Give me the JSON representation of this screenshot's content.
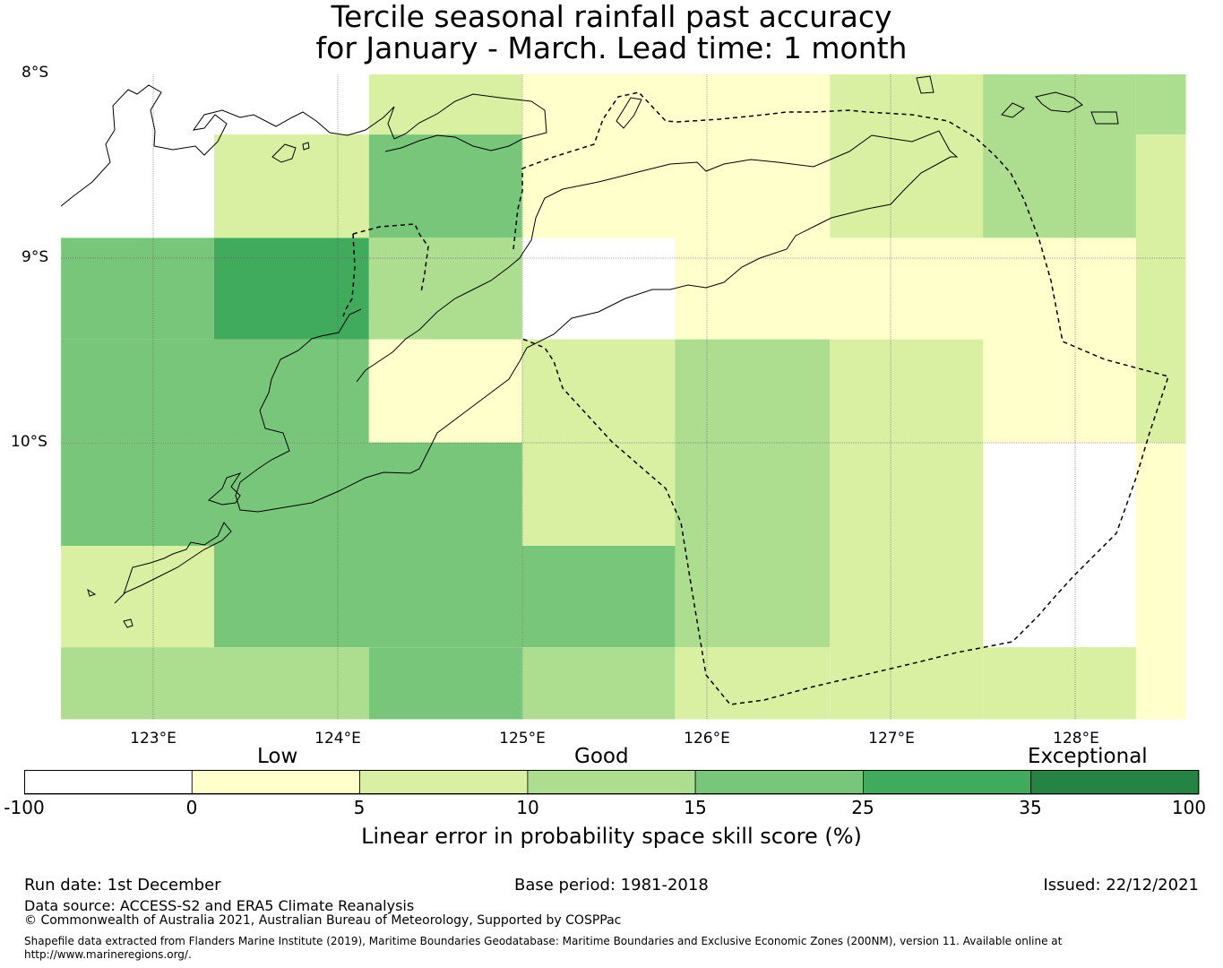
{
  "title": {
    "line1": "Tercile seasonal rainfall past accuracy",
    "line2": "for January - March. Lead time: 1 month"
  },
  "map": {
    "lat_labels": [
      "8°S",
      "9°S",
      "10°S"
    ],
    "lon_labels": [
      "123°E",
      "124°E",
      "125°E",
      "126°E",
      "127°E",
      "128°E"
    ],
    "lon_range": [
      122.5,
      128.6
    ],
    "lat_range": [
      -8.0,
      -11.5
    ],
    "grid_cells": [
      {
        "lon": [
          123.33,
          124.17
        ],
        "lat": [
          -8.33,
          -8.89
        ],
        "category": "5-10"
      },
      {
        "lon": [
          124.17,
          125.0
        ],
        "lat": [
          -8.0,
          -8.33
        ],
        "category": "5-10"
      },
      {
        "lon": [
          124.17,
          125.0
        ],
        "lat": [
          -8.33,
          -8.89
        ],
        "category": "15-25"
      },
      {
        "lon": [
          125.0,
          126.67
        ],
        "lat": [
          -8.0,
          -8.89
        ],
        "category": "0-5"
      },
      {
        "lon": [
          126.67,
          127.5
        ],
        "lat": [
          -8.0,
          -8.89
        ],
        "category": "5-10"
      },
      {
        "lon": [
          127.5,
          128.33
        ],
        "lat": [
          -8.0,
          -8.89
        ],
        "category": "10-15"
      },
      {
        "lon": [
          128.33,
          128.6
        ],
        "lat": [
          -8.0,
          -8.33
        ],
        "category": "10-15"
      },
      {
        "lon": [
          128.33,
          128.6
        ],
        "lat": [
          -8.33,
          -10.0
        ],
        "category": "5-10"
      },
      {
        "lon": [
          122.5,
          123.33
        ],
        "lat": [
          -8.89,
          -9.44
        ],
        "category": "15-25"
      },
      {
        "lon": [
          123.33,
          124.17
        ],
        "lat": [
          -8.89,
          -9.44
        ],
        "category": "25-35"
      },
      {
        "lon": [
          124.17,
          125.0
        ],
        "lat": [
          -8.89,
          -9.44
        ],
        "category": "10-15"
      },
      {
        "lon": [
          125.0,
          125.83
        ],
        "lat": [
          -8.89,
          -9.44
        ],
        "category": "-100-0"
      },
      {
        "lon": [
          125.83,
          128.33
        ],
        "lat": [
          -8.89,
          -9.44
        ],
        "category": "0-5"
      },
      {
        "lon": [
          122.5,
          124.17
        ],
        "lat": [
          -9.44,
          -10.0
        ],
        "category": "15-25"
      },
      {
        "lon": [
          124.17,
          125.0
        ],
        "lat": [
          -9.44,
          -10.0
        ],
        "category": "0-5"
      },
      {
        "lon": [
          125.0,
          125.83
        ],
        "lat": [
          -9.44,
          -10.56
        ],
        "category": "5-10"
      },
      {
        "lon": [
          125.83,
          126.67
        ],
        "lat": [
          -9.44,
          -11.11
        ],
        "category": "10-15"
      },
      {
        "lon": [
          126.67,
          127.5
        ],
        "lat": [
          -9.44,
          -11.5
        ],
        "category": "5-10"
      },
      {
        "lon": [
          127.5,
          128.33
        ],
        "lat": [
          -9.44,
          -10.0
        ],
        "category": "0-5"
      },
      {
        "lon": [
          122.5,
          125.0
        ],
        "lat": [
          -10.0,
          -10.56
        ],
        "category": "15-25"
      },
      {
        "lon": [
          127.5,
          128.33
        ],
        "lat": [
          -10.0,
          -11.11
        ],
        "category": "-100-0"
      },
      {
        "lon": [
          128.33,
          128.6
        ],
        "lat": [
          -10.0,
          -11.5
        ],
        "category": "0-5"
      },
      {
        "lon": [
          122.5,
          123.33
        ],
        "lat": [
          -10.56,
          -11.11
        ],
        "category": "5-10"
      },
      {
        "lon": [
          123.33,
          125.0
        ],
        "lat": [
          -10.56,
          -11.11
        ],
        "category": "15-25"
      },
      {
        "lon": [
          125.0,
          125.83
        ],
        "lat": [
          -10.56,
          -11.11
        ],
        "category": "15-25"
      },
      {
        "lon": [
          122.5,
          124.17
        ],
        "lat": [
          -11.11,
          -11.5
        ],
        "category": "10-15"
      },
      {
        "lon": [
          124.17,
          125.0
        ],
        "lat": [
          -11.11,
          -11.5
        ],
        "category": "15-25"
      },
      {
        "lon": [
          125.0,
          125.83
        ],
        "lat": [
          -11.11,
          -11.5
        ],
        "category": "10-15"
      },
      {
        "lon": [
          125.83,
          126.67
        ],
        "lat": [
          -11.11,
          -11.5
        ],
        "category": "5-10"
      },
      {
        "lon": [
          127.5,
          128.33
        ],
        "lat": [
          -11.11,
          -11.5
        ],
        "category": "5-10"
      }
    ]
  },
  "legend": {
    "category_labels": [
      "Low",
      "Good",
      "Exceptional"
    ],
    "ticks": [
      "-100",
      "0",
      "5",
      "10",
      "15",
      "25",
      "35",
      "100"
    ],
    "bins": [
      {
        "range": "-100-0",
        "color": "#ffffff"
      },
      {
        "range": "0-5",
        "color": "#ffffcc"
      },
      {
        "range": "5-10",
        "color": "#d9f0a3"
      },
      {
        "range": "10-15",
        "color": "#addd8e"
      },
      {
        "range": "15-25",
        "color": "#78c679"
      },
      {
        "range": "25-35",
        "color": "#41ab5d"
      },
      {
        "range": "35-100",
        "color": "#238443"
      }
    ],
    "axis_title": "Linear error in probability space skill score (%)"
  },
  "footer": {
    "run_date": "Run date: 1st December",
    "base_period": "Base period: 1981-2018",
    "issued": "Issued: 22/12/2021",
    "data_source": "Data source: ACCESS-S2 and ERA5 Climate Reanalysis",
    "copyright": "© Commonwealth of Australia 2021, Australian Bureau of Meteorology, Supported by COSPPac",
    "shapefile_line1": "Shapefile data extracted from Flanders Marine Institute (2019), Maritime Boundaries Geodatabase: Maritime Boundaries and Exclusive Economic Zones (200NM), version 11. Available online at",
    "shapefile_line2": "http://www.marineregions.org/."
  }
}
